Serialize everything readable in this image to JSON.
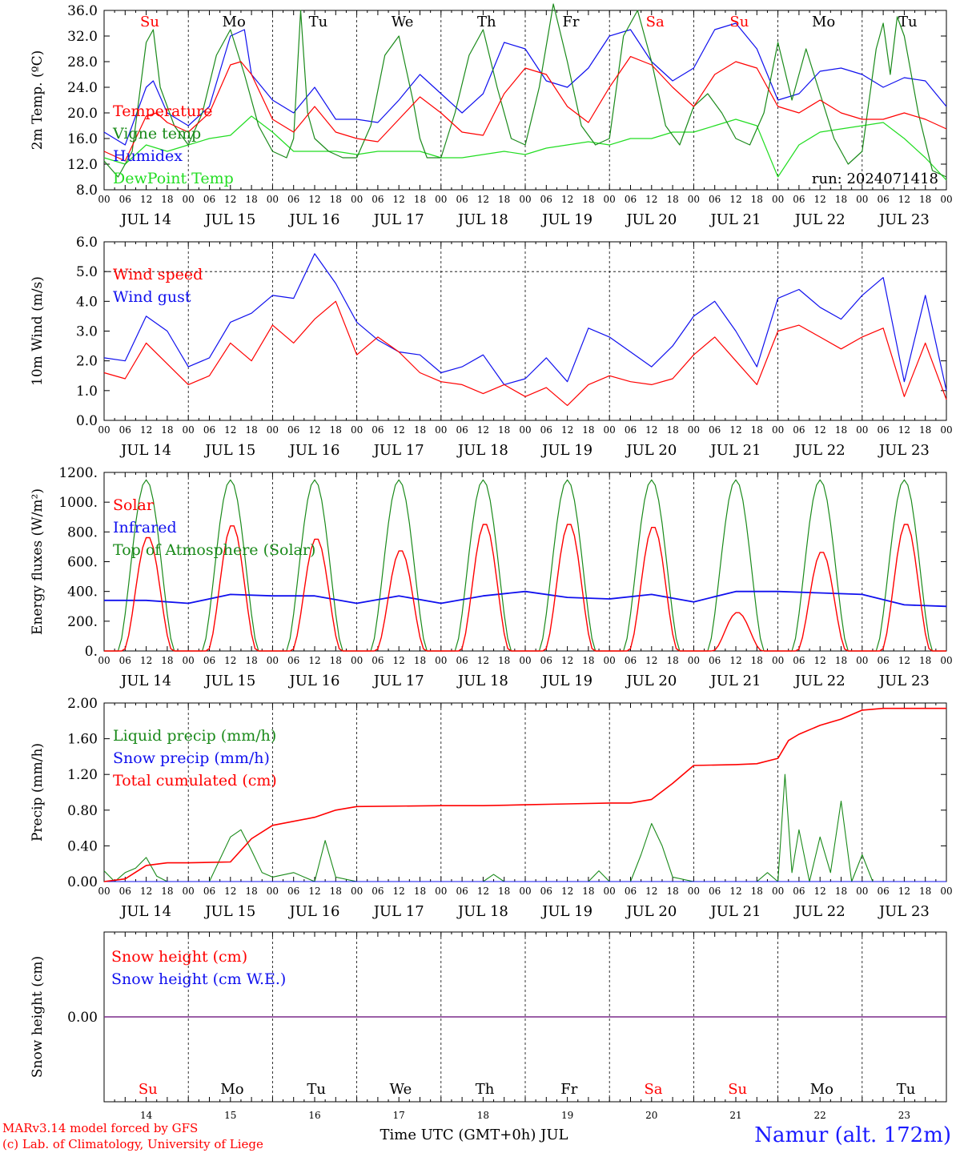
{
  "footer": {
    "credit_line1": "MARv3.14 model forced by GFS",
    "credit_line2": "(c) Lab. of Climatology, University of Liege",
    "time_axis_label": "Time UTC (GMT+0h) JUL",
    "station_label": "Namur (alt. 172m)"
  },
  "colors": {
    "red": "#ff0000",
    "green": "#1a8a1a",
    "blue": "#1010ee",
    "light_green": "#22dd22",
    "snow_line": "#7a2a8a",
    "axis": "#000000",
    "weekend_label": "#ff0000",
    "weekday_label": "#000000"
  },
  "chart_data": [
    {
      "type": "line",
      "ylabel": "2m Temp. (ºC)",
      "ylim": [
        8,
        36
      ],
      "yticks": [
        "8.0",
        "12.0",
        "16.0",
        "20.0",
        "24.0",
        "28.0",
        "32.0",
        "36.0"
      ],
      "day_labels": [
        "JUL 14",
        "JUL 15",
        "JUL 16",
        "JUL 17",
        "JUL 18",
        "JUL 19",
        "JUL 20",
        "JUL 21",
        "JUL 22",
        "JUL 23"
      ],
      "weekday_labels": [
        {
          "text": "Su",
          "weekend": true
        },
        {
          "text": "Mo",
          "weekend": false
        },
        {
          "text": "Tu",
          "weekend": false
        },
        {
          "text": "We",
          "weekend": false
        },
        {
          "text": "Th",
          "weekend": false
        },
        {
          "text": "Fr",
          "weekend": false
        },
        {
          "text": "Sa",
          "weekend": true
        },
        {
          "text": "Su",
          "weekend": true
        },
        {
          "text": "Mo",
          "weekend": false
        },
        {
          "text": "Tu",
          "weekend": false
        }
      ],
      "run_label": "run: 2024071418",
      "x_unit": "hours since JUL 14 00 UTC",
      "series": [
        {
          "name": "Temperature",
          "color": "red",
          "x": [
            0,
            6,
            12,
            15,
            18,
            24,
            30,
            36,
            39,
            42,
            48,
            54,
            60,
            66,
            72,
            78,
            84,
            90,
            96,
            102,
            108,
            114,
            120,
            126,
            132,
            138,
            144,
            150,
            156,
            162,
            168,
            174,
            180,
            186,
            192,
            198,
            204,
            210,
            216,
            222,
            228,
            234,
            240
          ],
          "y": [
            14,
            12.5,
            19.5,
            20,
            18.5,
            17,
            20,
            27.5,
            28,
            26,
            19,
            17,
            21,
            17,
            16,
            15.5,
            19,
            22.5,
            20,
            17,
            16.5,
            23,
            27,
            26,
            21,
            18.5,
            24,
            28.8,
            27.5,
            24,
            21,
            26,
            28,
            27,
            21,
            20,
            22,
            20,
            19,
            19,
            20,
            19,
            17.5
          ]
        },
        {
          "name": "Vigne temp",
          "color": "green",
          "x": [
            0,
            4,
            8,
            12,
            14,
            16,
            20,
            24,
            28,
            32,
            36,
            40,
            44,
            48,
            52,
            54,
            56,
            58,
            60,
            64,
            68,
            72,
            76,
            80,
            84,
            88,
            90,
            92,
            94,
            96,
            100,
            104,
            108,
            112,
            116,
            120,
            124,
            128,
            132,
            136,
            140,
            144,
            148,
            152,
            156,
            160,
            164,
            168,
            172,
            176,
            180,
            184,
            188,
            192,
            196,
            200,
            204,
            208,
            212,
            216,
            220,
            222,
            224,
            226,
            228,
            232,
            236,
            240
          ],
          "y": [
            12.5,
            10,
            14,
            31,
            33,
            24,
            18,
            15,
            20,
            29,
            33,
            26,
            18,
            14,
            13,
            16,
            36,
            20,
            16,
            14,
            13,
            13,
            18,
            29,
            32,
            22,
            16,
            13,
            13,
            13,
            20,
            29,
            33,
            24,
            16,
            15,
            24,
            37,
            28,
            18,
            15,
            16,
            32,
            36,
            28,
            18,
            15,
            21,
            23,
            20,
            16,
            15,
            20,
            31,
            22,
            30,
            23,
            16,
            12,
            14,
            30,
            34,
            26,
            35,
            32,
            20,
            11,
            10
          ]
        },
        {
          "name": "Humidex",
          "color": "blue",
          "x": [
            0,
            6,
            12,
            14,
            18,
            24,
            30,
            36,
            40,
            42,
            48,
            54,
            60,
            66,
            72,
            78,
            84,
            90,
            96,
            102,
            108,
            114,
            120,
            126,
            132,
            138,
            144,
            150,
            156,
            162,
            168,
            174,
            180,
            186,
            192,
            198,
            204,
            210,
            216,
            222,
            228,
            234,
            240
          ],
          "y": [
            17,
            15,
            24,
            25,
            20,
            18,
            21,
            32,
            33,
            26,
            22,
            20,
            24,
            19,
            19,
            18.5,
            22,
            26,
            23,
            20,
            23,
            31,
            30,
            25,
            24,
            27,
            32,
            33,
            28,
            25,
            27,
            33,
            34,
            30,
            22,
            23,
            26.5,
            27,
            26,
            24,
            25.5,
            25,
            21
          ]
        },
        {
          "name": "DewPoint Temp",
          "color": "light_green",
          "x": [
            0,
            6,
            12,
            18,
            24,
            30,
            36,
            42,
            48,
            54,
            60,
            66,
            72,
            78,
            84,
            90,
            96,
            102,
            108,
            114,
            120,
            126,
            132,
            138,
            144,
            150,
            156,
            162,
            168,
            174,
            180,
            186,
            192,
            198,
            204,
            210,
            216,
            222,
            228,
            234,
            240
          ],
          "y": [
            13,
            12,
            15,
            14,
            15,
            16,
            16.5,
            19.5,
            17,
            14,
            14,
            14,
            13.5,
            14,
            14,
            14,
            13,
            13,
            13.5,
            14,
            13.5,
            14.5,
            15,
            15.5,
            15,
            16,
            16,
            17,
            17,
            18,
            19,
            18,
            10,
            15,
            17,
            17.5,
            18,
            18.5,
            16,
            13,
            9.5
          ]
        }
      ]
    },
    {
      "type": "line",
      "ylabel": "10m Wind (m/s)",
      "ylim": [
        0,
        6
      ],
      "yticks": [
        "0.0",
        "1.0",
        "2.0",
        "3.0",
        "4.0",
        "5.0",
        "6.0"
      ],
      "reference_line": 5,
      "day_labels": [
        "JUL 14",
        "JUL 15",
        "JUL 16",
        "JUL 17",
        "JUL 18",
        "JUL 19",
        "JUL 20",
        "JUL 21",
        "JUL 22",
        "JUL 23"
      ],
      "x_unit": "hours since JUL 14 00 UTC",
      "series": [
        {
          "name": "Wind speed",
          "color": "red",
          "x": [
            0,
            6,
            12,
            18,
            24,
            30,
            36,
            42,
            48,
            54,
            60,
            66,
            72,
            78,
            84,
            90,
            96,
            102,
            108,
            114,
            120,
            126,
            132,
            138,
            144,
            150,
            156,
            162,
            168,
            174,
            180,
            186,
            192,
            198,
            204,
            210,
            216,
            222,
            228,
            234,
            240
          ],
          "y": [
            1.6,
            1.4,
            2.6,
            1.9,
            1.2,
            1.5,
            2.6,
            2,
            3.2,
            2.6,
            3.4,
            4,
            2.2,
            2.8,
            2.3,
            1.6,
            1.3,
            1.2,
            0.9,
            1.2,
            0.8,
            1.1,
            0.5,
            1.2,
            1.5,
            1.3,
            1.2,
            1.4,
            2.2,
            2.8,
            2,
            1.2,
            3,
            3.2,
            2.8,
            2.4,
            2.8,
            3.1,
            0.8,
            2.6,
            0.7
          ]
        },
        {
          "name": "Wind gust",
          "color": "blue",
          "x": [
            0,
            6,
            12,
            18,
            24,
            30,
            36,
            42,
            48,
            54,
            60,
            66,
            72,
            78,
            84,
            90,
            96,
            102,
            108,
            114,
            120,
            126,
            132,
            138,
            144,
            150,
            156,
            162,
            168,
            174,
            180,
            186,
            192,
            198,
            204,
            210,
            216,
            222,
            228,
            234,
            240
          ],
          "y": [
            2.1,
            2,
            3.5,
            3,
            1.8,
            2.1,
            3.3,
            3.6,
            4.2,
            4.1,
            5.6,
            4.6,
            3.3,
            2.7,
            2.3,
            2.2,
            1.6,
            1.8,
            2.2,
            1.2,
            1.4,
            2.1,
            1.3,
            3.1,
            2.8,
            2.3,
            1.8,
            2.5,
            3.5,
            4,
            3,
            1.8,
            4.1,
            4.4,
            3.8,
            3.4,
            4.2,
            4.8,
            1.3,
            4.2,
            1
          ]
        }
      ]
    },
    {
      "type": "line",
      "ylabel": "Energy fluxes (W/m²)",
      "ylim": [
        0,
        1200
      ],
      "yticks": [
        "0.",
        "200.",
        "400.",
        "600.",
        "800.",
        "1000.",
        "1200."
      ],
      "day_labels": [
        "JUL 14",
        "JUL 15",
        "JUL 16",
        "JUL 17",
        "JUL 18",
        "JUL 19",
        "JUL 20",
        "JUL 21",
        "JUL 22",
        "JUL 23"
      ],
      "x_unit": "hours since JUL 14 00 UTC",
      "toa_peak": 1150,
      "solar_daily_peaks": [
        770,
        850,
        760,
        680,
        860,
        860,
        840,
        260,
        670,
        860
      ],
      "series": [
        {
          "name": "Solar",
          "color": "red"
        },
        {
          "name": "Infrared",
          "color": "blue",
          "x": [
            0,
            12,
            24,
            36,
            48,
            60,
            72,
            84,
            96,
            108,
            120,
            132,
            144,
            156,
            168,
            180,
            192,
            204,
            216,
            228,
            240
          ],
          "y": [
            340,
            340,
            320,
            380,
            370,
            370,
            320,
            370,
            320,
            370,
            400,
            360,
            350,
            380,
            330,
            400,
            400,
            390,
            380,
            310,
            300
          ]
        },
        {
          "name": "Top of Atmosphere (Solar)",
          "color": "green"
        }
      ]
    },
    {
      "type": "line",
      "ylabel": "Precip (mm/h)",
      "ylim": [
        0,
        2
      ],
      "yticks": [
        "0.00",
        "0.40",
        "0.80",
        "1.20",
        "1.60",
        "2.00"
      ],
      "day_labels": [
        "JUL 14",
        "JUL 15",
        "JUL 16",
        "JUL 17",
        "JUL 18",
        "JUL 19",
        "JUL 20",
        "JUL 21",
        "JUL 22",
        "JUL 23"
      ],
      "x_unit": "hours since JUL 14 00 UTC",
      "series": [
        {
          "name": "Liquid precip (mm/h)",
          "color": "green",
          "x": [
            0,
            3,
            6,
            9,
            12,
            15,
            18,
            24,
            30,
            36,
            39,
            42,
            45,
            48,
            54,
            60,
            63,
            66,
            72,
            84,
            96,
            108,
            111,
            114,
            120,
            132,
            138,
            141,
            144,
            150,
            153,
            156,
            159,
            162,
            168,
            174,
            180,
            186,
            189,
            192,
            194,
            196,
            198,
            201,
            204,
            207,
            210,
            213,
            216,
            219,
            222,
            225,
            228,
            240
          ],
          "y": [
            0.12,
            0,
            0.1,
            0.15,
            0.27,
            0.06,
            0,
            0,
            0,
            0.5,
            0.58,
            0.35,
            0.1,
            0.05,
            0.1,
            0,
            0.46,
            0.05,
            0,
            0,
            0,
            0,
            0.08,
            0,
            0,
            0,
            0,
            0.12,
            0,
            0,
            0.3,
            0.65,
            0.4,
            0.05,
            0,
            0,
            0,
            0,
            0.1,
            0,
            1.2,
            0.1,
            0.58,
            0,
            0.5,
            0.1,
            0.9,
            0,
            0.3,
            0,
            0,
            0,
            0,
            0
          ]
        },
        {
          "name": "Snow precip (mm/h)",
          "color": "blue",
          "x": [
            0,
            240
          ],
          "y": [
            0,
            0
          ]
        },
        {
          "name": "Total cumulated (cm)",
          "color": "red",
          "x": [
            0,
            6,
            12,
            18,
            24,
            36,
            42,
            48,
            60,
            66,
            72,
            96,
            108,
            120,
            132,
            144,
            150,
            156,
            162,
            168,
            180,
            186,
            192,
            195,
            198,
            204,
            210,
            216,
            222,
            228,
            240
          ],
          "y": [
            0,
            0.03,
            0.18,
            0.21,
            0.21,
            0.22,
            0.48,
            0.63,
            0.72,
            0.8,
            0.84,
            0.85,
            0.85,
            0.86,
            0.87,
            0.88,
            0.88,
            0.92,
            1.1,
            1.3,
            1.31,
            1.32,
            1.38,
            1.58,
            1.65,
            1.75,
            1.82,
            1.92,
            1.94,
            1.94,
            1.94
          ]
        }
      ]
    },
    {
      "type": "line",
      "ylabel": "Snow height (cm)",
      "yticks": [
        "0.00"
      ],
      "weekday_labels": [
        {
          "text": "Su",
          "weekend": true
        },
        {
          "text": "Mo",
          "weekend": false
        },
        {
          "text": "Tu",
          "weekend": false
        },
        {
          "text": "We",
          "weekend": false
        },
        {
          "text": "Th",
          "weekend": false
        },
        {
          "text": "Fr",
          "weekend": false
        },
        {
          "text": "Sa",
          "weekend": true
        },
        {
          "text": "Su",
          "weekend": true
        },
        {
          "text": "Mo",
          "weekend": false
        },
        {
          "text": "Tu",
          "weekend": false
        }
      ],
      "day_numbers": [
        "14",
        "15",
        "16",
        "17",
        "18",
        "19",
        "20",
        "21",
        "22",
        "23"
      ],
      "series": [
        {
          "name": "Snow height (cm)",
          "color": "red",
          "x": [
            0,
            240
          ],
          "y": [
            0,
            0
          ]
        },
        {
          "name": "Snow height (cm W.E.)",
          "color": "blue",
          "x": [
            0,
            240
          ],
          "y": [
            0,
            0
          ]
        }
      ]
    }
  ]
}
